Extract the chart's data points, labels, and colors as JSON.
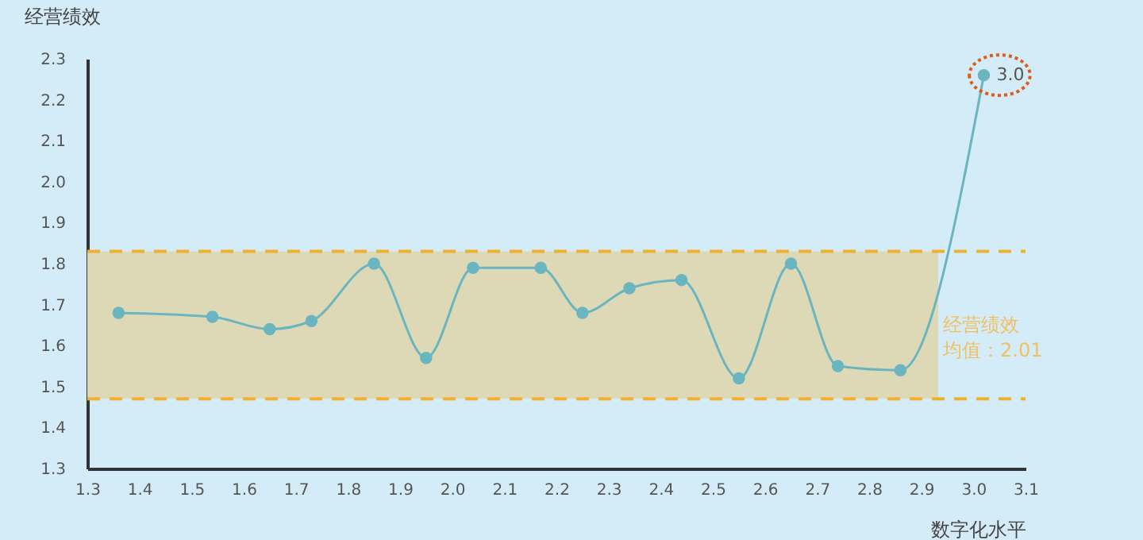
{
  "chart_data": {
    "type": "line",
    "xlabel": "数字化水平",
    "ylabel": "经营绩效",
    "x": [
      1.36,
      1.54,
      1.65,
      1.73,
      1.85,
      1.95,
      2.04,
      2.17,
      2.25,
      2.34,
      2.44,
      2.55,
      2.65,
      2.74,
      2.86,
      3.02
    ],
    "series": [
      {
        "color": "#6bb5c0",
        "values": [
          1.68,
          1.67,
          1.64,
          1.66,
          1.8,
          1.57,
          1.79,
          1.79,
          1.68,
          1.74,
          1.76,
          1.52,
          1.8,
          1.55,
          1.54,
          2.26
        ]
      }
    ],
    "xlim": [
      1.3,
      3.1
    ],
    "xticks": [
      1.3,
      1.4,
      1.5,
      1.6,
      1.7,
      1.8,
      1.9,
      {
        "value": 2,
        "label": "2.0"
      },
      2.1,
      2.2,
      2.3,
      2.4,
      2.5,
      2.6,
      2.7,
      2.8,
      2.9,
      {
        "value": 3,
        "label": "3.0"
      },
      3.1
    ],
    "ylim": [
      1.3,
      2.3
    ],
    "yticks": [
      1.3,
      1.4,
      1.5,
      1.6,
      1.7,
      1.8,
      1.9,
      {
        "value": 2,
        "label": "2.0"
      },
      2.1,
      2.2,
      2.3
    ],
    "bands": [
      {
        "axis": "y",
        "from": 1.47,
        "to": 1.83,
        "label": [
          "经营绩效",
          "均值：2.01"
        ],
        "color": "#ddd9b6"
      }
    ],
    "ref_lines": [
      {
        "axis": "y",
        "value": 1.83,
        "color": "#f0b030",
        "line_style": "dashed"
      },
      {
        "axis": "y",
        "value": 1.47,
        "color": "#f0b030",
        "line_style": "dashed"
      }
    ],
    "annotations": [
      {
        "text": "3.0",
        "x": 3.02,
        "y": 2.26
      }
    ],
    "marker": "circle",
    "grid": false,
    "legend": false
  }
}
